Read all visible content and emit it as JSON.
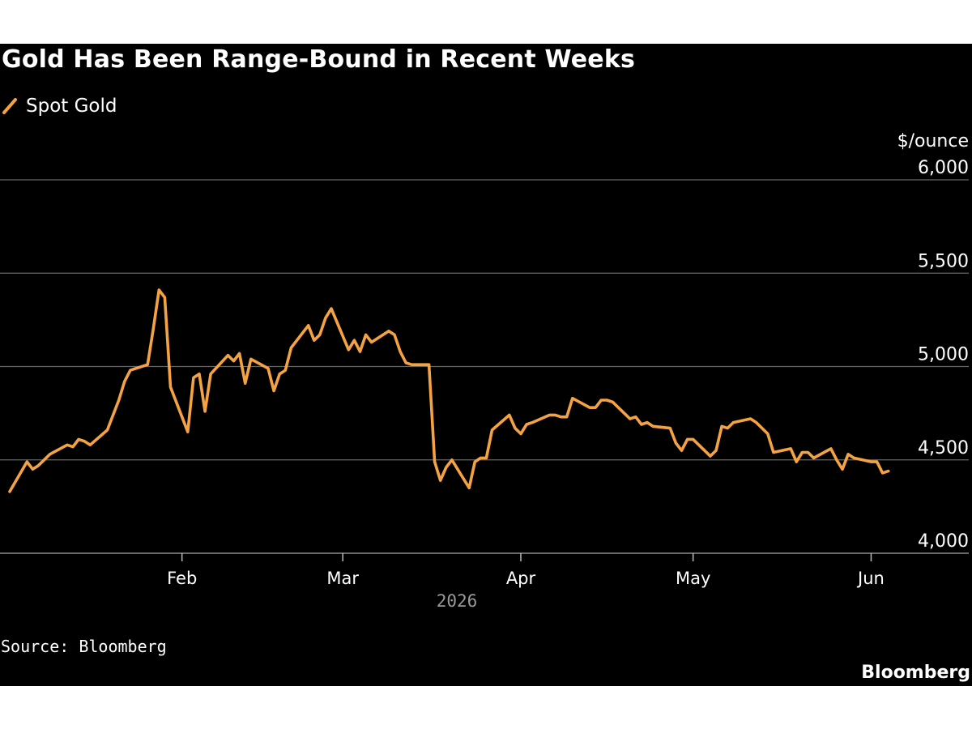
{
  "header": {
    "title": "Gold Has Been Range-Bound in Recent Weeks"
  },
  "footer": {
    "source": "Source: Bloomberg",
    "brand": "Bloomberg"
  },
  "colors": {
    "background": "#000000",
    "line": "#f5a342",
    "gridline": "#666666",
    "text": "#ffffff",
    "muted_text": "#9a9a9a"
  },
  "chart_data": {
    "type": "line",
    "title": "Gold Has Been Range-Bound in Recent Weeks",
    "ylabel": "$/ounce",
    "xlabel": "2026",
    "ylim": [
      4000,
      6000
    ],
    "yticks": [
      6000,
      5500,
      5000,
      4500,
      4000
    ],
    "ytick_labels": [
      "6,000",
      "5,500",
      "5,000",
      "4,500",
      "4,000"
    ],
    "xlim": [
      "2026-01-02",
      "2026-06-07"
    ],
    "xticks": [
      "2026-02-01",
      "2026-03-01",
      "2026-04-01",
      "2026-05-01",
      "2026-06-01"
    ],
    "xtick_labels": [
      "Feb",
      "Mar",
      "Apr",
      "May",
      "Jun"
    ],
    "grid": true,
    "legend_position": "top-left",
    "series": [
      {
        "name": "Spot Gold",
        "color": "#f5a342",
        "x": [
          "2026-01-02",
          "2026-01-05",
          "2026-01-06",
          "2026-01-07",
          "2026-01-08",
          "2026-01-09",
          "2026-01-12",
          "2026-01-13",
          "2026-01-14",
          "2026-01-15",
          "2026-01-16",
          "2026-01-19",
          "2026-01-20",
          "2026-01-21",
          "2026-01-22",
          "2026-01-23",
          "2026-01-26",
          "2026-01-27",
          "2026-01-28",
          "2026-01-29",
          "2026-01-30",
          "2026-02-02",
          "2026-02-03",
          "2026-02-04",
          "2026-02-05",
          "2026-02-06",
          "2026-02-09",
          "2026-02-10",
          "2026-02-11",
          "2026-02-12",
          "2026-02-13",
          "2026-02-16",
          "2026-02-17",
          "2026-02-18",
          "2026-02-19",
          "2026-02-20",
          "2026-02-23",
          "2026-02-24",
          "2026-02-25",
          "2026-02-26",
          "2026-02-27",
          "2026-03-02",
          "2026-03-03",
          "2026-03-04",
          "2026-03-05",
          "2026-03-06",
          "2026-03-09",
          "2026-03-10",
          "2026-03-11",
          "2026-03-12",
          "2026-03-13",
          "2026-03-16",
          "2026-03-17",
          "2026-03-18",
          "2026-03-19",
          "2026-03-20",
          "2026-03-23",
          "2026-03-24",
          "2026-03-25",
          "2026-03-26",
          "2026-03-27",
          "2026-03-30",
          "2026-03-31",
          "2026-04-01",
          "2026-04-02",
          "2026-04-03",
          "2026-04-06",
          "2026-04-07",
          "2026-04-08",
          "2026-04-09",
          "2026-04-10",
          "2026-04-13",
          "2026-04-14",
          "2026-04-15",
          "2026-04-16",
          "2026-04-17",
          "2026-04-20",
          "2026-04-21",
          "2026-04-22",
          "2026-04-23",
          "2026-04-24",
          "2026-04-27",
          "2026-04-28",
          "2026-04-29",
          "2026-04-30",
          "2026-05-01",
          "2026-05-04",
          "2026-05-05",
          "2026-05-06",
          "2026-05-07",
          "2026-05-08",
          "2026-05-11",
          "2026-05-12",
          "2026-05-13",
          "2026-05-14",
          "2026-05-15",
          "2026-05-18",
          "2026-05-19",
          "2026-05-20",
          "2026-05-21",
          "2026-05-22",
          "2026-05-25",
          "2026-05-26",
          "2026-05-27",
          "2026-05-28",
          "2026-05-29",
          "2026-06-01",
          "2026-06-02",
          "2026-06-03",
          "2026-06-04"
        ],
        "y": [
          4330,
          4490,
          4450,
          4470,
          4500,
          4530,
          4580,
          4570,
          4610,
          4600,
          4580,
          4660,
          4740,
          4820,
          4920,
          4980,
          5010,
          5200,
          5410,
          5370,
          4890,
          4650,
          4940,
          4960,
          4760,
          4960,
          5060,
          5030,
          5070,
          4910,
          5040,
          4990,
          4870,
          4960,
          4980,
          5100,
          5220,
          5140,
          5170,
          5260,
          5310,
          5090,
          5140,
          5080,
          5170,
          5130,
          5190,
          5170,
          5080,
          5020,
          5010,
          5010,
          4490,
          4390,
          4460,
          4500,
          4350,
          4490,
          4510,
          4510,
          4660,
          4740,
          4670,
          4640,
          4690,
          4700,
          4740,
          4740,
          4730,
          4730,
          4830,
          4780,
          4780,
          4820,
          4820,
          4810,
          4720,
          4730,
          4690,
          4700,
          4680,
          4670,
          4590,
          4550,
          4610,
          4610,
          4520,
          4550,
          4680,
          4670,
          4700,
          4720,
          4700,
          4670,
          4640,
          4540,
          4560,
          4490,
          4540,
          4540,
          4510,
          4560,
          4500,
          4450,
          4530,
          4510,
          4490,
          4490,
          4430,
          4440
        ]
      }
    ]
  }
}
